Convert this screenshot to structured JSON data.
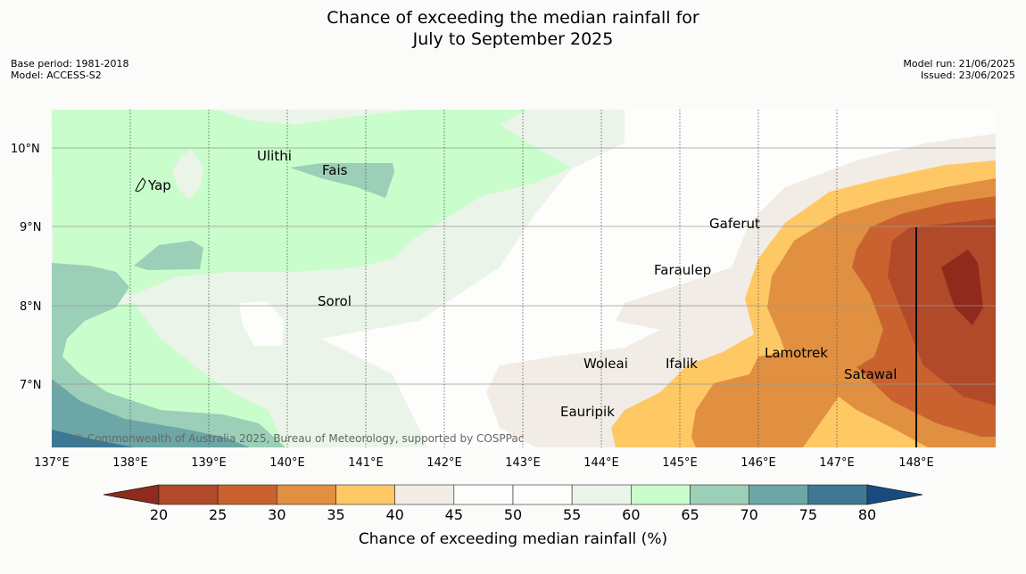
{
  "title_line1": "Chance of exceeding the median rainfall for",
  "title_line2": "July to September 2025",
  "base_period": "Base period: 1981-2018",
  "model": "Model: ACCESS-S2",
  "model_run": "Model run: 21/06/2025",
  "issued": "Issued: 23/06/2025",
  "copyright": "© Commonwealth of Australia 2025, Bureau of Meteorology, supported by COSPPac",
  "colorbar_title": "Chance of exceeding median rainfall (%)",
  "colorbar": {
    "ticks": [
      "20",
      "25",
      "30",
      "35",
      "40",
      "45",
      "50",
      "55",
      "60",
      "65",
      "70",
      "75",
      "80"
    ],
    "colors": [
      "#8f2a1c",
      "#b04a28",
      "#c9622f",
      "#e09040",
      "#fec865",
      "#f2ece6",
      "#fdfefc",
      "#fdfefc",
      "#eaf4e9",
      "#c9fdcb",
      "#9ccfb8",
      "#6ca6a6",
      "#3f7894",
      "#184c80"
    ]
  },
  "lon_labels": [
    "137°E",
    "138°E",
    "139°E",
    "140°E",
    "141°E",
    "142°E",
    "143°E",
    "144°E",
    "145°E",
    "146°E",
    "147°E",
    "148°E"
  ],
  "lat_labels": [
    "10°N",
    "9°N",
    "8°N",
    "7°N"
  ],
  "places": [
    "Yap",
    "Ulithi",
    "Fais",
    "Sorol",
    "Gaferut",
    "Faraulep",
    "Woleai",
    "Ifalik",
    "Lamotrek",
    "Satawal",
    "Eauripik"
  ]
}
